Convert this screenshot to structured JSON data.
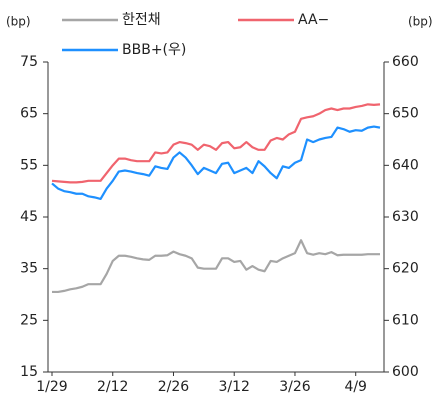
{
  "chart_data": {
    "type": "line",
    "y_label": "(bp)",
    "y2_label": "(bp)",
    "categories": [
      "1/29",
      null,
      null,
      null,
      null,
      null,
      null,
      null,
      null,
      null,
      "2/12",
      null,
      null,
      null,
      null,
      null,
      null,
      null,
      null,
      null,
      "2/26",
      null,
      null,
      null,
      null,
      null,
      null,
      null,
      null,
      null,
      "3/12",
      null,
      null,
      null,
      null,
      null,
      null,
      null,
      null,
      null,
      "3/26",
      null,
      null,
      null,
      null,
      null,
      null,
      null,
      null,
      null,
      "4/9",
      null,
      null,
      null,
      null
    ],
    "series": [
      {
        "name": "한전채",
        "color": "#a6a6a6",
        "values": [
          30.5,
          30.5,
          30.7,
          31,
          31.2,
          31.5,
          32,
          32,
          32,
          34,
          36.5,
          37.5,
          37.5,
          37.3,
          37,
          36.8,
          36.7,
          37.5,
          37.5,
          37.6,
          38.3,
          37.8,
          37.5,
          37,
          35.2,
          35,
          35,
          35,
          37,
          37,
          36.3,
          36.5,
          34.8,
          35.5,
          34.8,
          34.5,
          36.5,
          36.3,
          37,
          37.5,
          38,
          40.5,
          38,
          37.7,
          38,
          37.8,
          38.2,
          37.6,
          37.7,
          37.7,
          37.7,
          37.7,
          37.8,
          37.8,
          37.8
        ]
      },
      {
        "name": "AA−",
        "color": "#f0646e",
        "values": [
          52,
          51.9,
          51.8,
          51.7,
          51.7,
          51.8,
          52,
          52,
          52,
          53.5,
          55,
          56.3,
          56.3,
          56,
          55.8,
          55.8,
          55.8,
          57.5,
          57.3,
          57.5,
          59,
          59.5,
          59.3,
          59,
          58,
          59,
          58.7,
          58,
          59.3,
          59.5,
          58.3,
          58.5,
          59.5,
          58.5,
          58,
          58,
          59.8,
          60.3,
          60,
          61,
          61.5,
          64,
          64.3,
          64.5,
          65,
          65.7,
          66,
          65.7,
          66,
          66,
          66.3,
          66.5,
          66.8,
          66.7,
          66.8
        ]
      },
      {
        "name": "BBB+(우)",
        "color": "#1e90ff",
        "axis": "y2",
        "values": [
          636.5,
          635.5,
          635,
          634.8,
          634.5,
          634.5,
          634,
          633.8,
          633.5,
          635.5,
          637,
          638.8,
          639,
          638.8,
          638.5,
          638.3,
          638,
          639.8,
          639.5,
          639.3,
          641.5,
          642.5,
          641.5,
          640,
          638.3,
          639.5,
          639,
          638.5,
          640.3,
          640.5,
          638.5,
          639,
          639.5,
          638.5,
          640.8,
          639.8,
          638.5,
          637.5,
          639.8,
          639.5,
          640.5,
          641,
          645,
          644.5,
          645,
          645.3,
          645.5,
          647.3,
          647,
          646.5,
          646.8,
          646.7,
          647.3,
          647.5,
          647.3
        ]
      }
    ],
    "ylim": [
      15,
      75
    ],
    "yticks": [
      15,
      25,
      35,
      45,
      55,
      65,
      75
    ],
    "y2lim": [
      600,
      660
    ],
    "y2ticks": [
      600,
      610,
      620,
      630,
      640,
      650,
      660
    ]
  }
}
